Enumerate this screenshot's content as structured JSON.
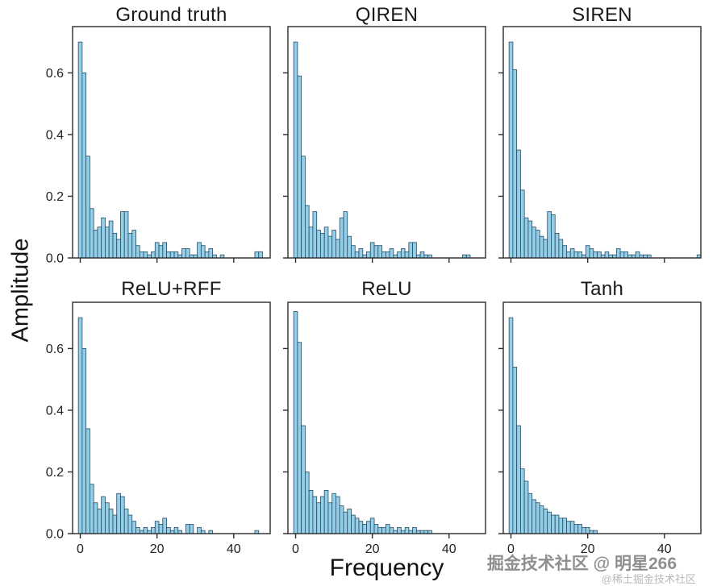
{
  "figure": {
    "ylabel": "Amplitude",
    "xlabel": "Frequency"
  },
  "watermark": {
    "line1": "掘金技术社区 @ 明星266",
    "line2": "@稀土掘金技术社区"
  },
  "chart_data": {
    "type": "bar",
    "layout": "2x3 grid of frequency-spectrum histograms, shared axes",
    "xlabel": "Frequency",
    "ylabel": "Amplitude",
    "xlim": [
      -2,
      49.5
    ],
    "ylim": [
      0,
      0.75
    ],
    "xticks": [
      0,
      20,
      40
    ],
    "yticks": [
      0.0,
      0.2,
      0.4,
      0.6
    ],
    "bin_width": 1,
    "bar_color": "#93cfe8",
    "bar_edge_color": "#274b63",
    "grid": false,
    "legend": "none",
    "panels": [
      {
        "title": "Ground truth",
        "values": [
          0.7,
          0.6,
          0.33,
          0.16,
          0.09,
          0.1,
          0.13,
          0.1,
          0.12,
          0.08,
          0.06,
          0.15,
          0.15,
          0.08,
          0.09,
          0.04,
          0.02,
          0.02,
          0.01,
          0.02,
          0.05,
          0.04,
          0.05,
          0.02,
          0.02,
          0.02,
          0.01,
          0.03,
          0.03,
          0.01,
          0.01,
          0.05,
          0.04,
          0.02,
          0.03,
          0.01,
          0,
          0.01,
          0,
          0,
          0,
          0,
          0,
          0,
          0,
          0,
          0.02,
          0.02
        ]
      },
      {
        "title": "QIREN",
        "values": [
          0.7,
          0.59,
          0.33,
          0.17,
          0.1,
          0.15,
          0.09,
          0.08,
          0.1,
          0.07,
          0.09,
          0.06,
          0.13,
          0.15,
          0.07,
          0.04,
          0.02,
          0.03,
          0.01,
          0.02,
          0.05,
          0.04,
          0.04,
          0.02,
          0.02,
          0.03,
          0.01,
          0.02,
          0.03,
          0.02,
          0.05,
          0.05,
          0.01,
          0.02,
          0.01,
          0.01,
          0,
          0,
          0,
          0,
          0,
          0,
          0,
          0,
          0.01,
          0.01
        ]
      },
      {
        "title": "SIREN",
        "values": [
          0.7,
          0.61,
          0.35,
          0.22,
          0.13,
          0.12,
          0.1,
          0.09,
          0.07,
          0.06,
          0.15,
          0.14,
          0.08,
          0.06,
          0.04,
          0.02,
          0.03,
          0.02,
          0.02,
          0.01,
          0.04,
          0.03,
          0.02,
          0.02,
          0.01,
          0.02,
          0.01,
          0.01,
          0.03,
          0.02,
          0.02,
          0.01,
          0.01,
          0.02,
          0.01,
          0.01,
          0.01,
          0,
          0,
          0,
          0,
          0,
          0,
          0,
          0,
          0,
          0,
          0,
          0,
          0.01
        ]
      },
      {
        "title": "ReLU+RFF",
        "values": [
          0.7,
          0.6,
          0.34,
          0.16,
          0.1,
          0.08,
          0.12,
          0.1,
          0.08,
          0.06,
          0.13,
          0.12,
          0.08,
          0.06,
          0.04,
          0.02,
          0.01,
          0.02,
          0.01,
          0.02,
          0.04,
          0.03,
          0.05,
          0.02,
          0.01,
          0.02,
          0.01,
          0,
          0.03,
          0.03,
          0,
          0.02,
          0.01,
          0,
          0.01,
          0,
          0,
          0,
          0,
          0,
          0,
          0,
          0,
          0,
          0,
          0,
          0.01
        ]
      },
      {
        "title": "ReLU",
        "values": [
          0.72,
          0.62,
          0.35,
          0.2,
          0.14,
          0.12,
          0.1,
          0.12,
          0.14,
          0.1,
          0.13,
          0.12,
          0.09,
          0.07,
          0.08,
          0.06,
          0.05,
          0.04,
          0.03,
          0.04,
          0.05,
          0.03,
          0.02,
          0.02,
          0.03,
          0.02,
          0.01,
          0.02,
          0.01,
          0.02,
          0.01,
          0.02,
          0.01,
          0.01,
          0.01,
          0.01
        ]
      },
      {
        "title": "Tanh",
        "values": [
          0.7,
          0.54,
          0.35,
          0.21,
          0.17,
          0.13,
          0.11,
          0.1,
          0.09,
          0.08,
          0.07,
          0.06,
          0.06,
          0.05,
          0.05,
          0.04,
          0.04,
          0.03,
          0.03,
          0.02,
          0.02,
          0.01,
          0.01
        ]
      }
    ]
  }
}
